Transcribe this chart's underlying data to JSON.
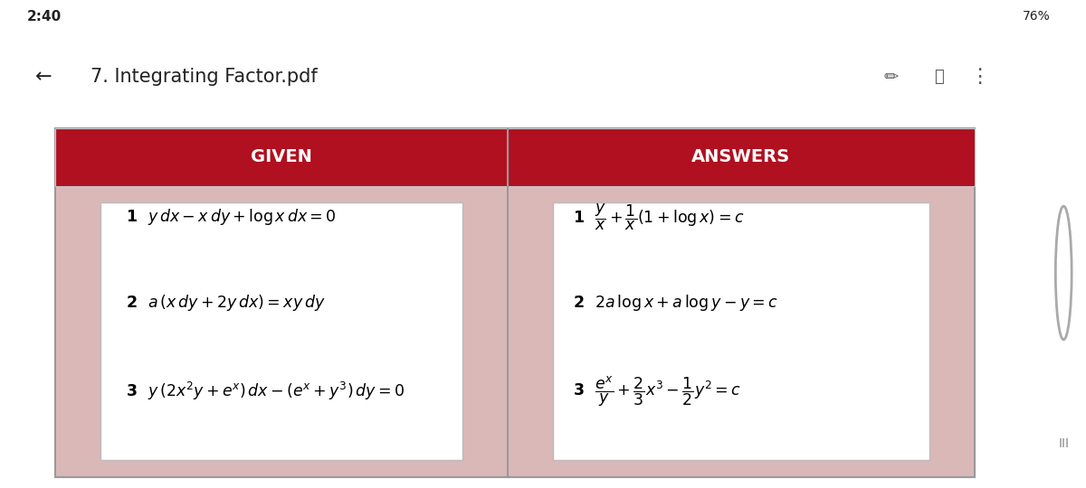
{
  "bg_outer": "#1a4a5a",
  "bg_table": "#dbb8b8",
  "bg_header": "#b01020",
  "bg_cell": "#ffffff",
  "header_text_color": "#ffffff",
  "cell_text_color": "#000000",
  "status_bar_bg": "#ffffff",
  "status_bar_text": "#222222",
  "title_bar_bg": "#ffffff",
  "title_bar_text": "#222222",
  "sidebar_bg": "#ffffff",
  "sidebar_dark": "#1a3d50",
  "title": "7. Integrating Factor.pdf",
  "header_given": "GIVEN",
  "header_answers": "ANSWERS",
  "figsize": [
    12.0,
    5.4
  ],
  "dpi": 100
}
